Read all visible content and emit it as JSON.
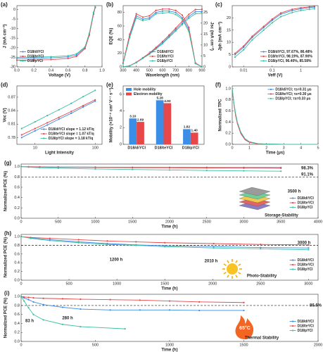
{
  "chart_data": [
    {
      "type": "line",
      "label": "(a)",
      "xlabel": "Voltage (V)",
      "ylabel": "J (mA cm⁻²)",
      "markers": true,
      "legend": "lower left",
      "x": [
        0,
        0.2,
        0.4,
        0.6,
        0.7,
        0.8,
        0.85,
        0.9,
        0.92
      ],
      "series": [
        {
          "name": "D18/diYCl",
          "color": "#3a8ee6",
          "values": [
            -25.6,
            -25.5,
            -25.3,
            -24.8,
            -23.8,
            -20,
            -13,
            -2,
            1
          ]
        },
        {
          "name": "D18/teYCl",
          "color": "#e8474a",
          "values": [
            -26.5,
            -26.4,
            -26.2,
            -25.6,
            -24.5,
            -20.5,
            -13.5,
            -2.5,
            1
          ]
        },
        {
          "name": "D18/pYCl",
          "color": "#3dbfa0",
          "values": [
            -25.0,
            -24.9,
            -24.7,
            -24.2,
            -23.2,
            -19.5,
            -12.5,
            -1.5,
            1.5
          ]
        }
      ],
      "xlim": [
        0,
        1
      ],
      "xticks": [
        {
          "value": 0,
          "label": "0.0"
        },
        0.2,
        0.4,
        0.6,
        0.8,
        {
          "value": 1,
          "label": "1.0"
        }
      ],
      "ylim": [
        -30,
        2
      ],
      "yticks": [
        -30,
        -25,
        -20,
        -15,
        -10,
        -5,
        0
      ]
    },
    {
      "type": "line",
      "label": "(b)",
      "xlabel": "Wavelength (nm)",
      "ylabel": "EQE (%)",
      "y2label": "Jsc (mA cm⁻²)",
      "markers": true,
      "legend": "lower center",
      "x": [
        300,
        350,
        400,
        450,
        500,
        550,
        600,
        650,
        700,
        750,
        800,
        850,
        900
      ],
      "series": [
        {
          "name": "D18/diYCl",
          "color": "#3a8ee6",
          "values": [
            5,
            45,
            75,
            70,
            72,
            80,
            82,
            82,
            80,
            72,
            55,
            5,
            0
          ]
        },
        {
          "name": "D18/teYCl",
          "color": "#e8474a",
          "values": [
            6,
            48,
            78,
            73,
            75,
            83,
            85,
            85,
            83,
            76,
            58,
            6,
            0
          ]
        },
        {
          "name": "D18/pYCl",
          "color": "#3dbfa0",
          "values": [
            5,
            43,
            72,
            68,
            70,
            78,
            79,
            80,
            77,
            70,
            52,
            5,
            0
          ]
        },
        {
          "name": "D18/diYCl",
          "color": "#3a8ee6",
          "axis": "y2",
          "values": [
            0,
            0.5,
            2,
            4,
            6,
            8.5,
            11,
            14,
            17,
            20,
            23,
            25.2,
            25.3
          ]
        },
        {
          "name": "D18/teYCl",
          "color": "#e8474a",
          "axis": "y2",
          "values": [
            0,
            0.5,
            2.1,
            4.2,
            6.3,
            8.9,
            11.6,
            14.6,
            17.7,
            20.9,
            24,
            26.2,
            26.3
          ]
        },
        {
          "name": "D18/pYCl",
          "color": "#3dbfa0",
          "axis": "y2",
          "values": [
            0,
            0.5,
            1.9,
            3.9,
            5.8,
            8.2,
            10.6,
            13.5,
            16.4,
            19.3,
            22.2,
            24.3,
            24.4
          ]
        }
      ],
      "xlim": [
        300,
        900
      ],
      "xticks": [
        300,
        400,
        500,
        600,
        700,
        800,
        900
      ],
      "ylim": [
        0,
        90
      ],
      "yticks": [
        0,
        20,
        40,
        60,
        80
      ],
      "y2lim": [
        0,
        28
      ],
      "y2ticks": [
        0,
        5,
        10,
        15,
        20,
        25
      ]
    },
    {
      "type": "line",
      "label": "(c)",
      "xlabel": "Veff (V)",
      "ylabel": "Jph (mA cm⁻²)",
      "xscale": "log",
      "markers": true,
      "legend": "lower right",
      "x": [
        0.005,
        0.01,
        0.02,
        0.05,
        0.1,
        0.2,
        0.5,
        1,
        2,
        3
      ],
      "series": [
        {
          "name": "D18/diYCl, 97.67%, 86.48%",
          "color": "#3a8ee6",
          "values": [
            5,
            8,
            12,
            16,
            19,
            21.5,
            23,
            23.7,
            24.2,
            24.4
          ]
        },
        {
          "name": "D18/teYCl, 98.19%, 87.90%",
          "color": "#e8474a",
          "values": [
            5.5,
            8.5,
            12.5,
            16.5,
            19.5,
            22,
            23.5,
            24.1,
            24.5,
            24.7
          ]
        },
        {
          "name": "D18/pYCl, 96.40%, 85.58%",
          "color": "#3dbfa0",
          "values": [
            4,
            7,
            11,
            15,
            18,
            20.5,
            22.2,
            23,
            23.5,
            23.7
          ]
        }
      ],
      "xlim": [
        0.004,
        4
      ],
      "xticks": [
        0.01,
        0.1,
        1
      ],
      "ylim": [
        0,
        25
      ],
      "yticks": [
        0,
        5,
        10,
        15,
        20
      ]
    },
    {
      "type": "line",
      "label": "(d)",
      "xlabel": "Light Intensity",
      "ylabel": "Voc (V)",
      "xscale": "log",
      "markers": true,
      "legend": "lower right",
      "x": [
        6,
        10,
        16,
        25,
        40,
        63,
        100
      ],
      "series": [
        {
          "name": "D18/diYCl slope = 1.12 kT/q",
          "color": "#3a8ee6",
          "values": [
            0.78,
            0.795,
            0.808,
            0.821,
            0.834,
            0.848,
            0.861
          ]
        },
        {
          "name": "D18/teYCl slope = 1.07 kT/q",
          "color": "#e8474a",
          "values": [
            0.786,
            0.8,
            0.813,
            0.825,
            0.838,
            0.851,
            0.864
          ]
        },
        {
          "name": "D18/pYCl slope = 1.18 kT/q",
          "color": "#3dbfa0",
          "values": [
            0.8,
            0.815,
            0.829,
            0.842,
            0.856,
            0.871,
            0.885
          ]
        }
      ],
      "xlim": [
        5,
        130
      ],
      "xticks": [
        10,
        100
      ],
      "ylim": [
        0.765,
        0.895
      ],
      "yticks": [
        0.78,
        0.81,
        0.84,
        0.87
      ]
    },
    {
      "type": "bar",
      "label": "(e)",
      "ylabel": "Mobility (×10⁻⁴ cm² V⁻¹ s⁻¹)",
      "legend": "upper left",
      "categories": [
        "D18/diYCl",
        "D18/teYCl",
        "D18/pYCl"
      ],
      "series": [
        {
          "name": "Hole mobility",
          "color": "#3a8ee6",
          "values": [
            3.1,
            5.28,
            1.82
          ],
          "value_labels": [
            "3.10",
            "5.28",
            "1.82"
          ]
        },
        {
          "name": "Electron mobility",
          "color": "#e8474a",
          "values": [
            2.69,
            4.93,
            1.4
          ],
          "value_labels": [
            "2.69",
            "4.93",
            "1.40"
          ]
        }
      ],
      "ylim": [
        0,
        7
      ],
      "yticks": [
        0,
        2,
        4,
        6
      ]
    },
    {
      "type": "line",
      "label": "(f)",
      "xlabel": "Time (μs)",
      "ylabel": "Normalized TPC",
      "markers": false,
      "legend": "upper right",
      "x": [
        0,
        0.1,
        0.2,
        0.3,
        0.5,
        0.75,
        1,
        1.5,
        2,
        3,
        4,
        5
      ],
      "series": [
        {
          "name": "D18/diYCl; τs=0.31 μs",
          "color": "#3a8ee6",
          "values": [
            1,
            0.72,
            0.52,
            0.38,
            0.2,
            0.09,
            0.04,
            0.01,
            0.005,
            0,
            0,
            0
          ]
        },
        {
          "name": "D18/teYCl; τs=0.30 μs",
          "color": "#e8474a",
          "values": [
            1,
            0.72,
            0.51,
            0.37,
            0.19,
            0.08,
            0.035,
            0.008,
            0.003,
            0,
            0,
            0
          ]
        },
        {
          "name": "D18/pYCl; τs=0.33 μs",
          "color": "#3dbfa0",
          "values": [
            1,
            0.74,
            0.55,
            0.4,
            0.22,
            0.1,
            0.048,
            0.012,
            0.005,
            0,
            0,
            0
          ]
        }
      ],
      "xlim": [
        0,
        5
      ],
      "xticks": [
        0,
        1,
        2,
        3,
        4,
        5
      ],
      "ylim": [
        0,
        1.05
      ],
      "yticks": [
        {
          "value": 0,
          "label": "0.0"
        },
        0.2,
        0.4,
        0.6,
        0.8,
        {
          "value": 1,
          "label": "1.0"
        }
      ]
    },
    {
      "type": "line",
      "label": "(g)",
      "xlabel": "Time (h)",
      "ylabel": "Normalized PCE (%)",
      "markers": true,
      "legend": "lower right",
      "hline": 0.8,
      "x": [
        0,
        100,
        250,
        500,
        1000,
        1500,
        2000,
        2500,
        3000,
        3500
      ],
      "series": [
        {
          "name": "D18/diYCl",
          "color": "#3a8ee6",
          "values": [
            1,
            0.998,
            0.996,
            0.993,
            0.99,
            0.988,
            0.986,
            0.985,
            0.984,
            0.983
          ]
        },
        {
          "name": "D18/teYCl",
          "color": "#e8474a",
          "values": [
            1,
            0.997,
            0.994,
            0.99,
            0.985,
            0.98,
            0.977,
            0.975,
            0.972,
            0.97
          ]
        },
        {
          "name": "D18/pYCl",
          "color": "#3dbfa0",
          "values": [
            1,
            0.99,
            0.98,
            0.97,
            0.955,
            0.945,
            0.935,
            0.925,
            0.918,
            0.911
          ]
        }
      ],
      "annotations": [
        "98.3%",
        "91.1%",
        "3500 h",
        "Storage-Stability"
      ],
      "xlim": [
        0,
        4000
      ],
      "xticks": [
        0,
        500,
        1000,
        1500,
        2000,
        2500,
        3000,
        3500,
        4000
      ],
      "ylim": [
        0,
        1.05
      ],
      "yticks": [
        {
          "value": 0,
          "label": "0.0"
        },
        0.2,
        0.4,
        0.6,
        0.8,
        {
          "value": 1,
          "label": "1.0"
        }
      ]
    },
    {
      "type": "line",
      "label": "(h)",
      "xlabel": "Time (h)",
      "ylabel": "Normalized PCE (%)",
      "markers": true,
      "legend": "lower right",
      "hline": 0.8,
      "x": [
        0,
        100,
        300,
        600,
        900,
        1200,
        1500,
        2010,
        2500,
        3000
      ],
      "series": [
        {
          "name": "D18/diYCl",
          "color": "#3a8ee6",
          "values": [
            1,
            0.97,
            0.93,
            0.88,
            0.84,
            0.81,
            0.79,
            0.77,
            0.75,
            0.74
          ]
        },
        {
          "name": "D18/teYCl",
          "color": "#e8474a",
          "values": [
            1,
            0.98,
            0.96,
            0.93,
            0.9,
            0.88,
            0.86,
            0.84,
            0.82,
            0.81
          ]
        },
        {
          "name": "D18/pYCl",
          "color": "#3dbfa0",
          "values": [
            1,
            0.96,
            0.91,
            0.86,
            0.82,
            0.8,
            0.77,
            0.74,
            0.72,
            0.7
          ]
        }
      ],
      "annotations": [
        "1200 h",
        "2010 h",
        "3000 h",
        "Photo-Stability"
      ],
      "xlim": [
        0,
        3100
      ],
      "xticks": [
        0,
        500,
        1000,
        1500,
        2000,
        2500,
        3000
      ],
      "ylim": [
        0,
        1.05
      ],
      "yticks": [
        {
          "value": 0,
          "label": "0.0"
        },
        0.2,
        0.4,
        0.6,
        0.8,
        {
          "value": 1,
          "label": "1.0"
        }
      ]
    },
    {
      "type": "line",
      "label": "(i)",
      "xlabel": "Time (h)",
      "ylabel": "Normalized PCE (%)",
      "markers": true,
      "legend": "lower right",
      "hline": 0.8,
      "series": [
        {
          "name": "D18/diYCl",
          "color": "#3a8ee6",
          "x": [
            0,
            20,
            50,
            83,
            150,
            280,
            400,
            600,
            800,
            1000,
            1200,
            1500
          ],
          "values": [
            1,
            0.97,
            0.93,
            0.88,
            0.82,
            0.76,
            0.72,
            0.7,
            0.7,
            0.7,
            0.69,
            0.69
          ]
        },
        {
          "name": "D18/teYCl",
          "color": "#e8474a",
          "x": [
            0,
            20,
            50,
            83,
            150,
            280,
            400,
            600,
            800,
            1000,
            1200,
            1500
          ],
          "values": [
            1,
            0.99,
            0.98,
            0.97,
            0.96,
            0.95,
            0.94,
            0.93,
            0.92,
            0.9,
            0.88,
            0.866
          ]
        },
        {
          "name": "D18/pYCl",
          "color": "#3dbfa0",
          "x": [
            0,
            20,
            50,
            83,
            150,
            280,
            400,
            700
          ],
          "values": [
            1,
            0.9,
            0.75,
            0.6,
            0.48,
            0.38,
            0.33,
            0.28
          ]
        }
      ],
      "annotations": [
        "83 h",
        "280 h",
        "86.6%",
        "Thermal Stability",
        "65°C"
      ],
      "xlim": [
        0,
        2000
      ],
      "xticks": [
        0,
        500,
        1000,
        1500,
        2000
      ],
      "ylim": [
        0,
        1.05
      ],
      "yticks": [
        {
          "value": 0,
          "label": "0.0"
        },
        0.2,
        0.4,
        0.6,
        0.8,
        {
          "value": 1,
          "label": "1.0"
        }
      ]
    }
  ]
}
